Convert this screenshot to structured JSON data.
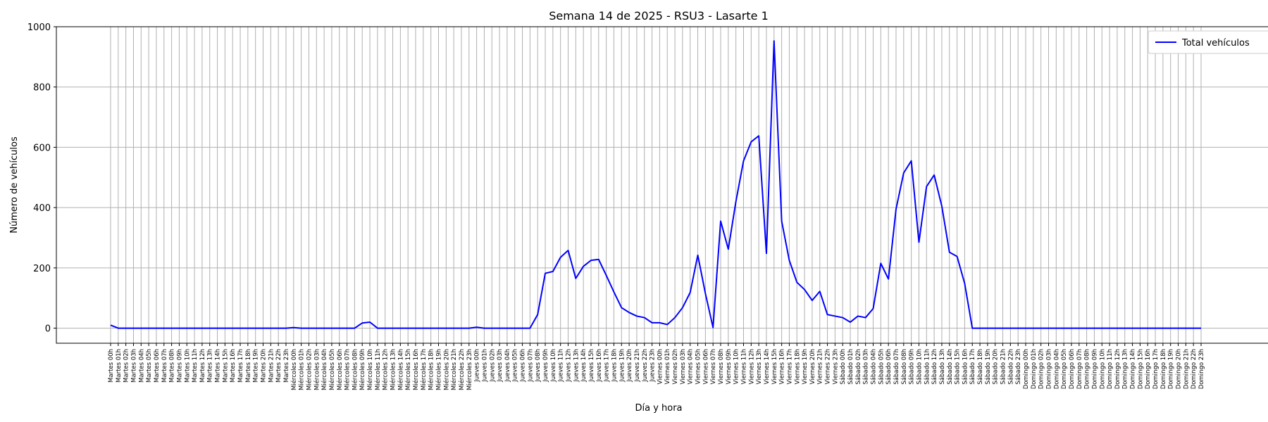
{
  "chart_data": {
    "type": "line",
    "title": "Semana 14 de 2025 - RSU3 - Lasarte 1",
    "xlabel": "Día y hora",
    "ylabel": "Número de vehículos",
    "ylim": [
      -50,
      1000
    ],
    "yticks": [
      0,
      200,
      400,
      600,
      800,
      1000
    ],
    "grid": true,
    "legend_position": "top-right",
    "series": [
      {
        "name": "Total vehículos",
        "color": "#0000ff",
        "values": [
          10,
          0,
          0,
          0,
          0,
          0,
          0,
          0,
          0,
          0,
          0,
          0,
          0,
          0,
          0,
          0,
          0,
          0,
          0,
          0,
          0,
          0,
          0,
          0,
          2,
          0,
          0,
          0,
          0,
          0,
          0,
          0,
          0,
          17,
          20,
          0,
          0,
          0,
          0,
          0,
          0,
          0,
          0,
          0,
          0,
          0,
          0,
          0,
          3,
          0,
          0,
          0,
          0,
          0,
          0,
          0,
          45,
          182,
          188,
          235,
          258,
          165,
          205,
          225,
          228,
          175,
          120,
          68,
          52,
          40,
          35,
          18,
          18,
          12,
          35,
          68,
          118,
          242,
          115,
          2,
          355,
          262,
          420,
          555,
          618,
          638,
          248,
          953,
          355,
          225,
          152,
          128,
          92,
          122,
          45,
          40,
          35,
          20,
          40,
          35,
          65,
          215,
          163,
          395,
          515,
          555,
          285,
          470,
          508,
          405,
          252,
          238,
          148,
          0,
          0,
          0,
          0,
          0,
          0,
          0,
          0,
          0,
          0,
          0,
          0,
          0,
          0,
          0,
          0,
          0,
          0,
          0,
          0,
          0,
          0,
          0,
          0,
          0,
          0,
          0,
          0,
          0,
          0,
          0
        ]
      }
    ],
    "categories": [
      "Martes 00h",
      "Martes 01h",
      "Martes 02h",
      "Martes 03h",
      "Martes 04h",
      "Martes 05h",
      "Martes 06h",
      "Martes 07h",
      "Martes 08h",
      "Martes 09h",
      "Martes 10h",
      "Martes 11h",
      "Martes 12h",
      "Martes 13h",
      "Martes 14h",
      "Martes 15h",
      "Martes 16h",
      "Martes 17h",
      "Martes 18h",
      "Martes 19h",
      "Martes 20h",
      "Martes 21h",
      "Martes 22h",
      "Martes 23h",
      "Miércoles 00h",
      "Miércoles 01h",
      "Miércoles 02h",
      "Miércoles 03h",
      "Miércoles 04h",
      "Miércoles 05h",
      "Miércoles 06h",
      "Miércoles 07h",
      "Miércoles 08h",
      "Miércoles 09h",
      "Miércoles 10h",
      "Miércoles 11h",
      "Miércoles 12h",
      "Miércoles 13h",
      "Miércoles 14h",
      "Miércoles 15h",
      "Miércoles 16h",
      "Miércoles 17h",
      "Miércoles 18h",
      "Miércoles 19h",
      "Miércoles 20h",
      "Miércoles 21h",
      "Miércoles 22h",
      "Miércoles 23h",
      "Jueves 00h",
      "Jueves 01h",
      "Jueves 02h",
      "Jueves 03h",
      "Jueves 04h",
      "Jueves 05h",
      "Jueves 06h",
      "Jueves 07h",
      "Jueves 08h",
      "Jueves 09h",
      "Jueves 10h",
      "Jueves 11h",
      "Jueves 12h",
      "Jueves 13h",
      "Jueves 14h",
      "Jueves 15h",
      "Jueves 16h",
      "Jueves 17h",
      "Jueves 18h",
      "Jueves 19h",
      "Jueves 20h",
      "Jueves 21h",
      "Jueves 22h",
      "Jueves 23h",
      "Viernes 00h",
      "Viernes 01h",
      "Viernes 02h",
      "Viernes 03h",
      "Viernes 04h",
      "Viernes 05h",
      "Viernes 06h",
      "Viernes 07h",
      "Viernes 08h",
      "Viernes 09h",
      "Viernes 10h",
      "Viernes 11h",
      "Viernes 12h",
      "Viernes 13h",
      "Viernes 14h",
      "Viernes 15h",
      "Viernes 16h",
      "Viernes 17h",
      "Viernes 18h",
      "Viernes 19h",
      "Viernes 20h",
      "Viernes 21h",
      "Viernes 22h",
      "Viernes 23h",
      "Sábado 00h",
      "Sábado 01h",
      "Sábado 02h",
      "Sábado 03h",
      "Sábado 04h",
      "Sábado 05h",
      "Sábado 06h",
      "Sábado 07h",
      "Sábado 08h",
      "Sábado 09h",
      "Sábado 10h",
      "Sábado 11h",
      "Sábado 12h",
      "Sábado 13h",
      "Sábado 14h",
      "Sábado 15h",
      "Sábado 16h",
      "Sábado 17h",
      "Sábado 18h",
      "Sábado 19h",
      "Sábado 20h",
      "Sábado 21h",
      "Sábado 22h",
      "Sábado 23h",
      "Domingo 00h",
      "Domingo 01h",
      "Domingo 02h",
      "Domingo 03h",
      "Domingo 04h",
      "Domingo 05h",
      "Domingo 06h",
      "Domingo 07h",
      "Domingo 08h",
      "Domingo 09h",
      "Domingo 10h",
      "Domingo 11h",
      "Domingo 12h",
      "Domingo 13h",
      "Domingo 14h",
      "Domingo 15h",
      "Domingo 16h",
      "Domingo 17h",
      "Domingo 18h",
      "Domingo 19h",
      "Domingo 20h",
      "Domingo 21h",
      "Domingo 22h",
      "Domingo 23h"
    ]
  }
}
